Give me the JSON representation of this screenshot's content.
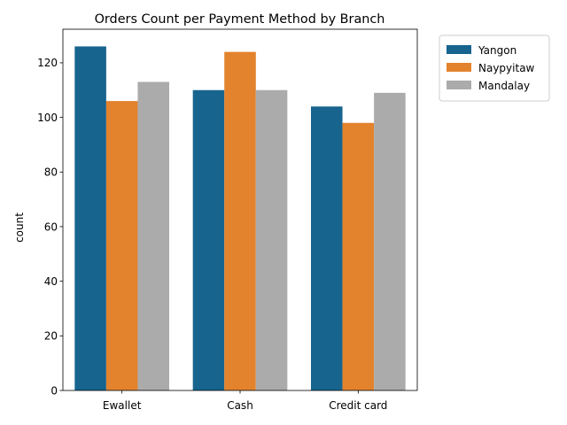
{
  "chart_data": {
    "type": "bar",
    "title": "Orders Count per Payment Method by Branch",
    "xlabel": "",
    "ylabel": "count",
    "categories": [
      "Ewallet",
      "Cash",
      "Credit card"
    ],
    "series": [
      {
        "name": "Yangon",
        "values": [
          126,
          110,
          104
        ],
        "color": "#17648f"
      },
      {
        "name": "Naypyitaw",
        "values": [
          106,
          124,
          98
        ],
        "color": "#e3832d"
      },
      {
        "name": "Mandalay",
        "values": [
          113,
          110,
          109
        ],
        "color": "#ababab"
      }
    ],
    "ylim": [
      0,
      132.3
    ],
    "yticks": [
      0,
      20,
      40,
      60,
      80,
      100,
      120
    ],
    "grid": false,
    "legend_position": "outside-top-right"
  }
}
